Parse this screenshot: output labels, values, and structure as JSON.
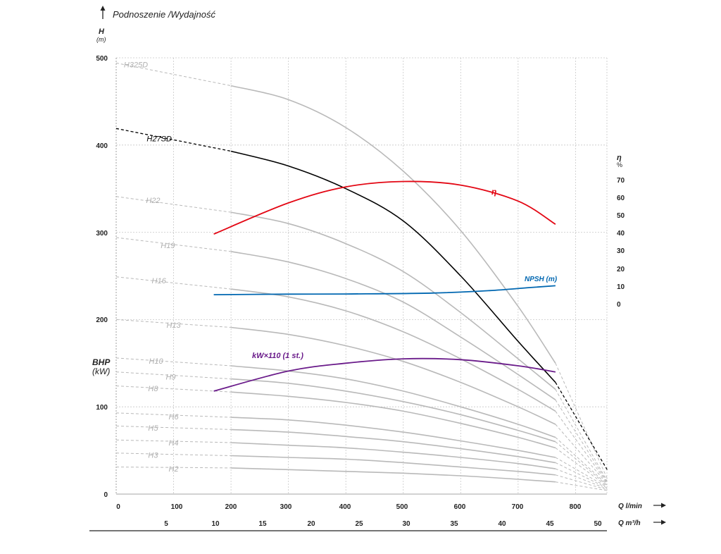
{
  "title": "Podnoszenie /Wydajność",
  "left_axis": {
    "symbol": "H",
    "unit": "(m)",
    "ticks": [
      "0",
      "100",
      "200",
      "300",
      "400",
      "500"
    ]
  },
  "power_axis": {
    "symbol": "BHP",
    "unit": "(kW)"
  },
  "right_axis": {
    "symbol": "η",
    "unit": "%",
    "ticks": [
      "0",
      "10",
      "20",
      "30",
      "40",
      "50",
      "60",
      "70"
    ]
  },
  "x_axis_lmin": {
    "label": "Q l/min",
    "ticks": [
      "0",
      "100",
      "200",
      "300",
      "400",
      "500",
      "600",
      "700",
      "800"
    ]
  },
  "x_axis_m3h": {
    "label": "Q m³/h",
    "ticks": [
      "5",
      "10",
      "15",
      "20",
      "25",
      "30",
      "35",
      "40",
      "45",
      "50"
    ]
  },
  "colors": {
    "grid": "#c8c8c8",
    "stage_curve": "#b9b9b9",
    "highlight_curve": "#000000",
    "efficiency": "#e30613",
    "npsh": "#0067b1",
    "power": "#6a1b8a"
  },
  "chart_data": {
    "type": "line",
    "title": "Podnoszenie /Wydajność",
    "xlabel": "Q l/min",
    "xlabel_secondary": "Q m³/h",
    "ylabel": "H (m)",
    "ylabel_right": "η %",
    "xlim": [
      0,
      855
    ],
    "ylim": [
      0,
      500
    ],
    "ylim_right_efficiency": [
      0,
      70
    ],
    "grid": true,
    "operating_range_lmin": [
      170,
      765
    ],
    "series": [
      {
        "name": "H325D",
        "role": "head",
        "shutoff_head": 494,
        "points": [
          [
            200,
            468
          ],
          [
            300,
            452
          ],
          [
            400,
            420
          ],
          [
            500,
            370
          ],
          [
            600,
            302
          ],
          [
            700,
            215
          ],
          [
            765,
            150
          ],
          [
            855,
            18
          ]
        ]
      },
      {
        "name": "H27SD",
        "role": "head",
        "highlight": true,
        "shutoff_head": 419,
        "points": [
          [
            200,
            393
          ],
          [
            300,
            376
          ],
          [
            400,
            350
          ],
          [
            500,
            313
          ],
          [
            600,
            250
          ],
          [
            700,
            175
          ],
          [
            765,
            128
          ],
          [
            855,
            28
          ]
        ]
      },
      {
        "name": "H22",
        "role": "head",
        "shutoff_head": 341,
        "points": [
          [
            200,
            323
          ],
          [
            300,
            310
          ],
          [
            400,
            287
          ],
          [
            500,
            255
          ],
          [
            600,
            208
          ],
          [
            700,
            155
          ],
          [
            765,
            120
          ],
          [
            855,
            15
          ]
        ]
      },
      {
        "name": "H19",
        "role": "head",
        "shutoff_head": 294,
        "points": [
          [
            200,
            278
          ],
          [
            300,
            266
          ],
          [
            400,
            247
          ],
          [
            500,
            220
          ],
          [
            600,
            180
          ],
          [
            700,
            137
          ],
          [
            765,
            108
          ],
          [
            855,
            14
          ]
        ]
      },
      {
        "name": "H16",
        "role": "head",
        "shutoff_head": 249,
        "points": [
          [
            200,
            235
          ],
          [
            300,
            226
          ],
          [
            400,
            210
          ],
          [
            500,
            186
          ],
          [
            600,
            155
          ],
          [
            700,
            120
          ],
          [
            765,
            95
          ],
          [
            855,
            13
          ]
        ]
      },
      {
        "name": "H13",
        "role": "head",
        "shutoff_head": 200,
        "points": [
          [
            200,
            191
          ],
          [
            300,
            183
          ],
          [
            400,
            170
          ],
          [
            500,
            152
          ],
          [
            600,
            128
          ],
          [
            700,
            100
          ],
          [
            765,
            80
          ],
          [
            855,
            12
          ]
        ]
      },
      {
        "name": "H10",
        "role": "head",
        "shutoff_head": 156,
        "points": [
          [
            200,
            147
          ],
          [
            300,
            141
          ],
          [
            400,
            132
          ],
          [
            500,
            118
          ],
          [
            600,
            100
          ],
          [
            700,
            80
          ],
          [
            765,
            65
          ],
          [
            855,
            11
          ]
        ]
      },
      {
        "name": "H9",
        "role": "head",
        "shutoff_head": 140,
        "points": [
          [
            200,
            132
          ],
          [
            300,
            127
          ],
          [
            400,
            118
          ],
          [
            500,
            106
          ],
          [
            600,
            91
          ],
          [
            700,
            73
          ],
          [
            765,
            60
          ],
          [
            855,
            10
          ]
        ]
      },
      {
        "name": "H8",
        "role": "head",
        "shutoff_head": 124,
        "points": [
          [
            200,
            117
          ],
          [
            300,
            112
          ],
          [
            400,
            105
          ],
          [
            500,
            95
          ],
          [
            600,
            81
          ],
          [
            700,
            65
          ],
          [
            765,
            53
          ],
          [
            855,
            9
          ]
        ]
      },
      {
        "name": "H6",
        "role": "head",
        "shutoff_head": 93,
        "points": [
          [
            200,
            88
          ],
          [
            300,
            85
          ],
          [
            400,
            79
          ],
          [
            500,
            71
          ],
          [
            600,
            61
          ],
          [
            700,
            50
          ],
          [
            765,
            42
          ],
          [
            855,
            8
          ]
        ]
      },
      {
        "name": "H5",
        "role": "head",
        "shutoff_head": 78,
        "points": [
          [
            200,
            74
          ],
          [
            300,
            71
          ],
          [
            400,
            66
          ],
          [
            500,
            60
          ],
          [
            600,
            52
          ],
          [
            700,
            43
          ],
          [
            765,
            36
          ],
          [
            855,
            7
          ]
        ]
      },
      {
        "name": "H4",
        "role": "head",
        "shutoff_head": 62,
        "points": [
          [
            200,
            59
          ],
          [
            300,
            56
          ],
          [
            400,
            53
          ],
          [
            500,
            48
          ],
          [
            600,
            42
          ],
          [
            700,
            35
          ],
          [
            765,
            29
          ],
          [
            855,
            6
          ]
        ]
      },
      {
        "name": "H3",
        "role": "head",
        "shutoff_head": 47,
        "points": [
          [
            200,
            44
          ],
          [
            300,
            42
          ],
          [
            400,
            40
          ],
          [
            500,
            36
          ],
          [
            600,
            31
          ],
          [
            700,
            26
          ],
          [
            765,
            22
          ],
          [
            855,
            5
          ]
        ]
      },
      {
        "name": "H2",
        "role": "head",
        "shutoff_head": 31,
        "points": [
          [
            200,
            30
          ],
          [
            300,
            28
          ],
          [
            400,
            26
          ],
          [
            500,
            24
          ],
          [
            600,
            21
          ],
          [
            700,
            17
          ],
          [
            765,
            14
          ],
          [
            855,
            4
          ]
        ]
      },
      {
        "name": "η",
        "role": "efficiency",
        "unit": "%",
        "points": [
          [
            170,
            39.5
          ],
          [
            300,
            57
          ],
          [
            400,
            66
          ],
          [
            500,
            69
          ],
          [
            600,
            67
          ],
          [
            700,
            58
          ],
          [
            765,
            45
          ]
        ]
      },
      {
        "name": "NPSH (m)",
        "role": "npsh",
        "unit": "m",
        "points": [
          [
            170,
            5.5
          ],
          [
            300,
            5.8
          ],
          [
            400,
            5.9
          ],
          [
            550,
            6.4
          ],
          [
            650,
            7.8
          ],
          [
            720,
            9.5
          ],
          [
            765,
            10.5
          ]
        ]
      },
      {
        "name": "kW×110 (1 st.)",
        "role": "power",
        "unit": "kW",
        "points": [
          [
            170,
            118
          ],
          [
            300,
            141
          ],
          [
            400,
            150
          ],
          [
            500,
            155
          ],
          [
            600,
            154
          ],
          [
            700,
            147
          ],
          [
            765,
            140
          ]
        ]
      }
    ]
  }
}
